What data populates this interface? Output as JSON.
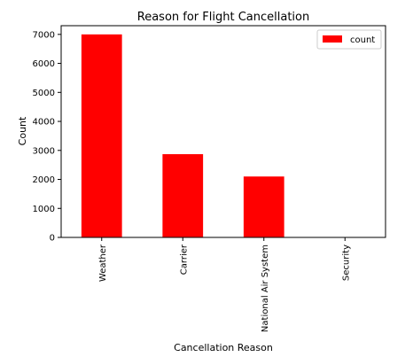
{
  "chart_data": {
    "type": "bar",
    "title": "Reason for Flight Cancellation",
    "xlabel": "Cancellation Reason",
    "ylabel": "Count",
    "categories": [
      "Weather",
      "Carrier",
      "National Air System",
      "Security"
    ],
    "series": [
      {
        "name": "count",
        "values": [
          7000,
          2870,
          2100,
          0
        ],
        "color": "#ff0000"
      }
    ],
    "ylim": [
      0,
      7300
    ],
    "yticks": [
      0,
      1000,
      2000,
      3000,
      4000,
      5000,
      6000,
      7000
    ],
    "grid": false,
    "legend_position": "top-right"
  }
}
